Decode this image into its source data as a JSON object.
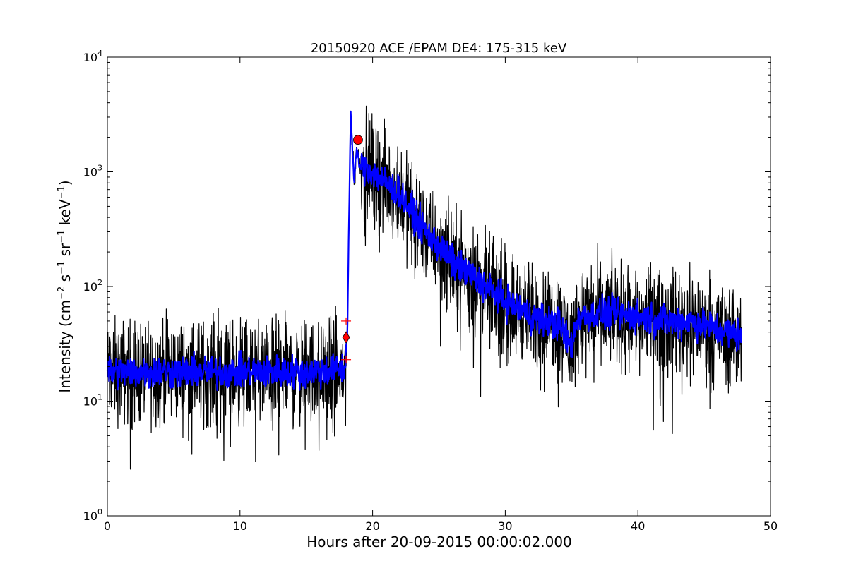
{
  "chart_data": {
    "type": "line",
    "title": "20150920 ACE /EPAM DE4: 175-315 keV",
    "xlabel": "Hours after 20-09-2015 00:00:02.000",
    "ylabel": {
      "parts": [
        "Intensity (cm",
        "−2",
        " s",
        "−1",
        " sr",
        "−1",
        " keV",
        "−1",
        ")"
      ]
    },
    "xlim": [
      0,
      50
    ],
    "ylim": [
      1,
      10000
    ],
    "yscale": "log",
    "grid": false,
    "x_ticks": [
      "0",
      "10",
      "20",
      "30",
      "40",
      "50"
    ],
    "y_ticks": [
      {
        "base": "10",
        "exp": "0"
      },
      {
        "base": "10",
        "exp": "1"
      },
      {
        "base": "10",
        "exp": "2"
      },
      {
        "base": "10",
        "exp": "3"
      },
      {
        "base": "10",
        "exp": "4"
      }
    ],
    "series": [
      {
        "role": "raw intensity (noisy)",
        "color": "#000000",
        "key_points": [
          {
            "x": 0.0,
            "y": 18
          },
          {
            "x": 5.0,
            "y": 18
          },
          {
            "x": 10.0,
            "y": 18
          },
          {
            "x": 15.0,
            "y": 18
          },
          {
            "x": 17.9,
            "y": 18
          },
          {
            "x": 18.1,
            "y": 40
          },
          {
            "x": 18.2,
            "y": 300
          },
          {
            "x": 18.35,
            "y": 3300
          },
          {
            "x": 18.6,
            "y": 800
          },
          {
            "x": 18.8,
            "y": 1600
          },
          {
            "x": 19.0,
            "y": 1200
          },
          {
            "x": 20.0,
            "y": 1000
          },
          {
            "x": 22.0,
            "y": 650
          },
          {
            "x": 24.0,
            "y": 300
          },
          {
            "x": 26.0,
            "y": 170
          },
          {
            "x": 28.0,
            "y": 110
          },
          {
            "x": 30.0,
            "y": 75
          },
          {
            "x": 32.0,
            "y": 55
          },
          {
            "x": 34.0,
            "y": 48
          },
          {
            "x": 35.0,
            "y": 32
          },
          {
            "x": 35.5,
            "y": 55
          },
          {
            "x": 38.0,
            "y": 58
          },
          {
            "x": 40.0,
            "y": 55
          },
          {
            "x": 42.0,
            "y": 50
          },
          {
            "x": 44.0,
            "y": 50
          },
          {
            "x": 46.0,
            "y": 42
          },
          {
            "x": 47.8,
            "y": 38
          }
        ],
        "noise_dex": 0.22,
        "min_value": 2.2
      },
      {
        "role": "smoothed intensity",
        "color": "#0000ff",
        "key_points": [
          {
            "x": 0.0,
            "y": 18
          },
          {
            "x": 5.0,
            "y": 18
          },
          {
            "x": 10.0,
            "y": 18
          },
          {
            "x": 15.0,
            "y": 18
          },
          {
            "x": 17.9,
            "y": 19
          },
          {
            "x": 18.1,
            "y": 40
          },
          {
            "x": 18.2,
            "y": 300
          },
          {
            "x": 18.35,
            "y": 3300
          },
          {
            "x": 18.6,
            "y": 800
          },
          {
            "x": 18.8,
            "y": 1600
          },
          {
            "x": 19.0,
            "y": 1150
          },
          {
            "x": 20.0,
            "y": 1000
          },
          {
            "x": 22.0,
            "y": 650
          },
          {
            "x": 24.0,
            "y": 300
          },
          {
            "x": 26.0,
            "y": 165
          },
          {
            "x": 28.0,
            "y": 110
          },
          {
            "x": 30.0,
            "y": 75
          },
          {
            "x": 32.0,
            "y": 55
          },
          {
            "x": 34.0,
            "y": 47
          },
          {
            "x": 35.0,
            "y": 30
          },
          {
            "x": 35.5,
            "y": 55
          },
          {
            "x": 38.0,
            "y": 58
          },
          {
            "x": 40.0,
            "y": 55
          },
          {
            "x": 42.0,
            "y": 50
          },
          {
            "x": 44.0,
            "y": 50
          },
          {
            "x": 46.0,
            "y": 42
          },
          {
            "x": 47.8,
            "y": 38
          }
        ],
        "noise_dex": 0.07
      }
    ],
    "markers": [
      {
        "shape": "circle",
        "x": 18.9,
        "y": 1900,
        "color": "#ff0000"
      },
      {
        "shape": "diamond",
        "x": 18.0,
        "y": 36,
        "color": "#ff0000"
      },
      {
        "shape": "plus",
        "x": 18.0,
        "y": 50,
        "color": "#ff0000"
      },
      {
        "shape": "plus",
        "x": 18.0,
        "y": 23,
        "color": "#ff0000"
      }
    ]
  }
}
